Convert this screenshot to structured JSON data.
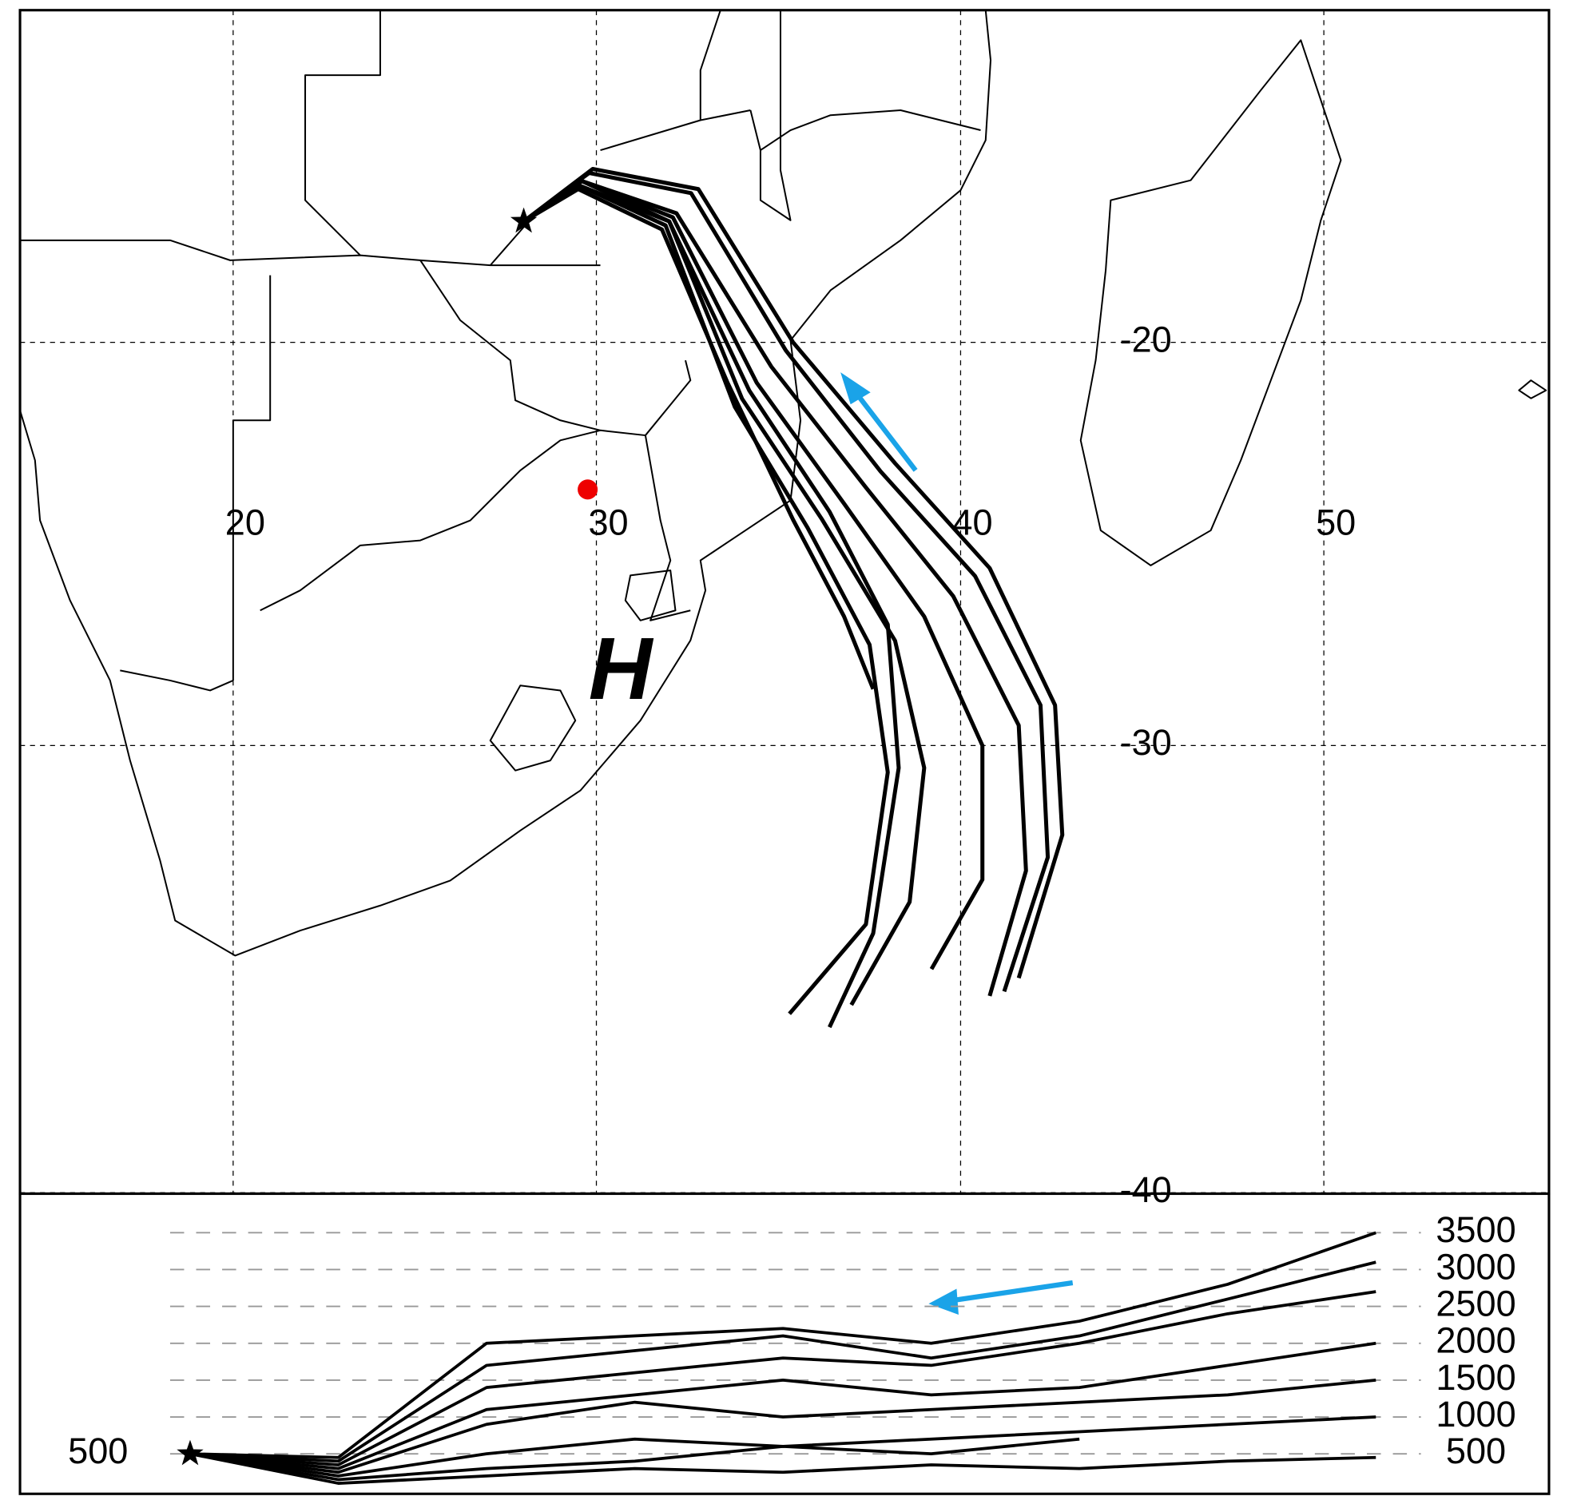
{
  "map": {
    "xticks": [
      20,
      30,
      40,
      50
    ],
    "yticks": [
      -20,
      -30,
      -40
    ],
    "start": {
      "lon": 28.0,
      "lat": -17.0
    },
    "site": {
      "lon": 29.76,
      "lat": -23.65
    },
    "high_label": "H",
    "trajectories": [
      {
        "lon": [
          28.0,
          29.8,
          32.6,
          35.2,
          37.8,
          40.4,
          42.2,
          42.4,
          41.2
        ],
        "lat": [
          -17.0,
          -15.8,
          -16.3,
          -20.2,
          -23.2,
          -25.8,
          -29.0,
          -32.5,
          -35.5
        ],
        "height": [
          500,
          450,
          2000,
          2100,
          2200,
          2000,
          2300,
          2800,
          3500
        ]
      },
      {
        "lon": [
          28.0,
          29.6,
          32.2,
          34.8,
          37.4,
          39.8,
          41.6,
          41.8,
          40.8
        ],
        "lat": [
          -17.0,
          -16.0,
          -16.8,
          -20.6,
          -23.6,
          -26.3,
          -29.5,
          -32.8,
          -35.6
        ],
        "height": [
          500,
          400,
          1700,
          1900,
          2100,
          1800,
          2100,
          2600,
          3100
        ]
      },
      {
        "lon": [
          28.0,
          29.6,
          32.1,
          34.4,
          36.8,
          39.0,
          40.6,
          40.6,
          39.2
        ],
        "lat": [
          -17.0,
          -16.0,
          -16.9,
          -21.0,
          -24.0,
          -26.8,
          -30.0,
          -33.0,
          -35.0
        ],
        "height": [
          500,
          350,
          1400,
          1600,
          1800,
          1700,
          2000,
          2400,
          2700
        ]
      },
      {
        "lon": [
          28.0,
          29.5,
          32.0,
          34.0,
          36.2,
          38.2,
          39.0,
          38.6,
          37.0
        ],
        "lat": [
          -17.0,
          -16.1,
          -17.0,
          -21.4,
          -24.4,
          -27.4,
          -30.5,
          -33.5,
          -35.8
        ],
        "height": [
          500,
          300,
          1100,
          1300,
          1500,
          1300,
          1400,
          1700,
          2000
        ]
      },
      {
        "lon": [
          28.0,
          29.5,
          31.9,
          33.8,
          35.8,
          37.5,
          38.0,
          37.4,
          35.3
        ],
        "lat": [
          -17.0,
          -16.1,
          -17.1,
          -21.6,
          -24.6,
          -27.5,
          -30.6,
          -34.0,
          -36.0
        ],
        "height": [
          500,
          250,
          900,
          1200,
          1000,
          1100,
          1200,
          1300,
          1500
        ]
      },
      {
        "lon": [
          28.0,
          29.6,
          32.0,
          34.2,
          36.4,
          38.0,
          38.3,
          37.6,
          36.4
        ],
        "lat": [
          -17.0,
          -16.0,
          -17.0,
          -21.2,
          -24.2,
          -27.0,
          -30.5,
          -34.2,
          -36.3
        ],
        "height": [
          500,
          200,
          500,
          700,
          600,
          700,
          800,
          900,
          1000
        ]
      },
      {
        "lon": [
          28.0,
          29.5,
          31.8,
          33.6,
          35.4,
          36.8,
          37.6
        ],
        "lat": [
          -17.0,
          -16.2,
          -17.2,
          -21.0,
          -24.4,
          -26.8,
          -28.6
        ],
        "height": [
          500,
          150,
          300,
          400,
          600,
          500,
          700
        ]
      },
      {
        "lon": [
          28.0,
          29.9,
          32.8,
          35.4,
          38.2,
          40.8,
          42.6,
          42.8,
          41.6
        ],
        "lat": [
          -17.0,
          -15.7,
          -16.2,
          -20.0,
          -23.0,
          -25.6,
          -29.0,
          -32.0,
          -35.2
        ],
        "height": [
          500,
          100,
          200,
          300,
          250,
          350,
          300,
          400,
          450
        ]
      }
    ]
  },
  "height_panel": {
    "start_height": 500,
    "yticks": [
      500,
      1000,
      1500,
      2000,
      2500,
      3000,
      3500
    ]
  }
}
